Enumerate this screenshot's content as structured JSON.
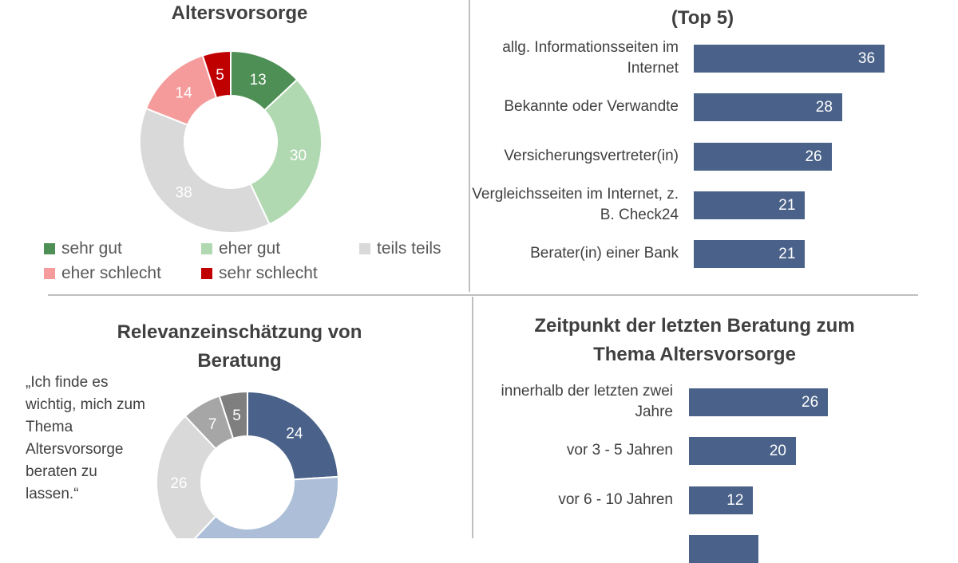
{
  "chart_data": [
    {
      "type": "pie",
      "title": "Altersvorsorge",
      "categories": [
        "sehr gut",
        "eher gut",
        "teils teils",
        "eher schlecht",
        "sehr schlecht"
      ],
      "values": [
        13,
        30,
        38,
        14,
        5
      ],
      "colors": [
        "#4e8f55",
        "#b1d9b1",
        "#d9d9d9",
        "#f59b9b",
        "#c00000"
      ],
      "legend": "bottom"
    },
    {
      "type": "bar",
      "title": "(Top 5)",
      "categories": [
        "allg. Informationsseiten im Internet",
        "Bekannte oder Verwandte",
        "Versicherungsvertreter(in)",
        "Vergleichsseiten im Internet, z. B. Check24",
        "Berater(in) einer Bank"
      ],
      "values": [
        36,
        28,
        26,
        21,
        21
      ],
      "color": "#4a6289"
    },
    {
      "type": "pie",
      "title": "Relevanzeinschätzung von Beratung",
      "annotation": "„Ich finde es wichtig, mich zum Thema Altersvorsorge beraten zu lassen.“",
      "values": [
        24,
        38,
        26,
        7,
        5
      ],
      "colors": [
        "#4a6289",
        "#adbfd8",
        "#d9d9d9",
        "#a6a6a6",
        "#7f7f7f"
      ]
    },
    {
      "type": "bar",
      "title": "Zeitpunkt der letzten Beratung zum Thema Altersvorsorge",
      "categories": [
        "innerhalb der letzten zwei Jahre",
        "vor 3 - 5 Jahren",
        "vor 6 - 10 Jahren",
        ""
      ],
      "values": [
        26,
        20,
        12,
        13
      ],
      "color": "#4a6289"
    }
  ]
}
